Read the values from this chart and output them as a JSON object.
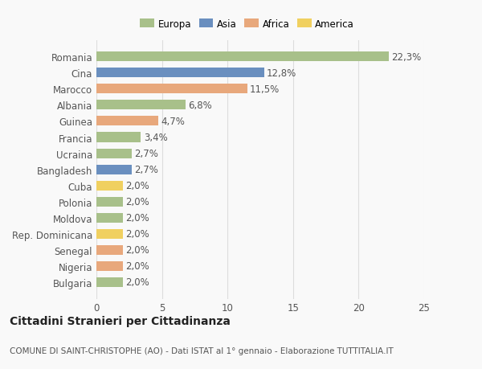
{
  "countries": [
    "Romania",
    "Cina",
    "Marocco",
    "Albania",
    "Guinea",
    "Francia",
    "Ucraina",
    "Bangladesh",
    "Cuba",
    "Polonia",
    "Moldova",
    "Rep. Dominicana",
    "Senegal",
    "Nigeria",
    "Bulgaria"
  ],
  "values": [
    22.3,
    12.8,
    11.5,
    6.8,
    4.7,
    3.4,
    2.7,
    2.7,
    2.0,
    2.0,
    2.0,
    2.0,
    2.0,
    2.0,
    2.0
  ],
  "labels": [
    "22,3%",
    "12,8%",
    "11,5%",
    "6,8%",
    "4,7%",
    "3,4%",
    "2,7%",
    "2,7%",
    "2,0%",
    "2,0%",
    "2,0%",
    "2,0%",
    "2,0%",
    "2,0%",
    "2,0%"
  ],
  "continents": [
    "Europa",
    "Asia",
    "Africa",
    "Europa",
    "Africa",
    "Europa",
    "Europa",
    "Asia",
    "America",
    "Europa",
    "Europa",
    "America",
    "Africa",
    "Africa",
    "Europa"
  ],
  "continent_colors": {
    "Europa": "#a8c08a",
    "Asia": "#6a8fbf",
    "Africa": "#e8a87c",
    "America": "#f0d060"
  },
  "legend_labels": [
    "Europa",
    "Asia",
    "Africa",
    "America"
  ],
  "legend_colors": [
    "#a8c08a",
    "#6a8fbf",
    "#e8a87c",
    "#f0d060"
  ],
  "title": "Cittadini Stranieri per Cittadinanza",
  "subtitle": "COMUNE DI SAINT-CHRISTOPHE (AO) - Dati ISTAT al 1° gennaio - Elaborazione TUTTITALIA.IT",
  "xlim": [
    0,
    25
  ],
  "xticks": [
    0,
    5,
    10,
    15,
    20,
    25
  ],
  "background_color": "#f9f9f9",
  "bar_height": 0.6,
  "label_fontsize": 8.5,
  "tick_fontsize": 8.5,
  "title_fontsize": 10,
  "subtitle_fontsize": 7.5
}
